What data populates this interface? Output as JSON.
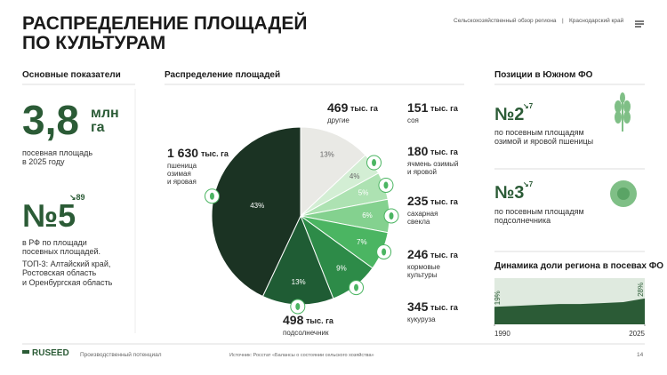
{
  "header": {
    "title": "РАСПРЕДЕЛЕНИЕ ПЛОЩАДЕЙ\nПО КУЛЬТУРАМ",
    "breadcrumb": "Сельскохозяйственный обзор региона",
    "region": "Краснодарский край"
  },
  "key_metrics": {
    "heading": "Основные показатели",
    "area_value": "3,8",
    "area_unit": "млн\nга",
    "area_caption": "посевная площадь\nв 2025 году",
    "rank": "№5",
    "rank_change": "↘89",
    "rank_caption": "в РФ по площади\nпосевных площадей.",
    "top3": "ТОП-3: Алтайский край,\nРостовская область\nи Оренбургская область"
  },
  "chart_data": [
    {
      "type": "pie",
      "title": "Распределение площадей",
      "categories": [
        "другие",
        "соя",
        "ячмень озимый\nи яровой",
        "сахарная\nсвекла",
        "кормовые\nкультуры",
        "кукуруза",
        "подсолнечник",
        "пшеница\nозимая\nи яровая"
      ],
      "values": [
        13,
        4,
        5,
        6,
        7,
        9,
        13,
        43
      ],
      "value_labels": [
        "13%",
        "4%",
        "5%",
        "6%",
        "7%",
        "9%",
        "13%",
        "43%"
      ],
      "area_labels": [
        "469",
        "151",
        "180",
        "235",
        "246",
        "345",
        "498",
        "1 630"
      ],
      "area_unit": "тыс. га",
      "colors": [
        "#e9e9e5",
        "#d3eed4",
        "#ade2b2",
        "#84d18f",
        "#4bb562",
        "#2d8b48",
        "#1f5c34",
        "#1b3323"
      ]
    },
    {
      "type": "area",
      "title": "Динамика доли региона в посевах ФО",
      "x": [
        1990,
        1995,
        2000,
        2005,
        2010,
        2015,
        2020,
        2025
      ],
      "values": [
        19,
        20,
        21,
        22,
        22,
        23,
        24,
        28
      ],
      "value_labels": [
        "19%",
        null,
        null,
        null,
        null,
        null,
        null,
        "28%"
      ],
      "xlim": [
        1990,
        2025
      ],
      "xticks": [
        1990,
        2025
      ],
      "ylim": [
        0,
        50
      ],
      "color": "#2b5b36"
    }
  ],
  "positions": {
    "heading": "Позиции в Южном ФО",
    "items": [
      {
        "rank": "№2",
        "change": "↘7",
        "caption": "по посевным площадям\nозимой и яровой пшеницы"
      },
      {
        "rank": "№3",
        "change": "↘7",
        "caption": "по посевным площадям\nподсолнечника"
      }
    ]
  },
  "footer": {
    "brand": "RUSEED",
    "section": "Производственный потенциал",
    "source": "Источник: Росстат «Балансы о состоянии сельского хозяйства»",
    "page": "14"
  }
}
